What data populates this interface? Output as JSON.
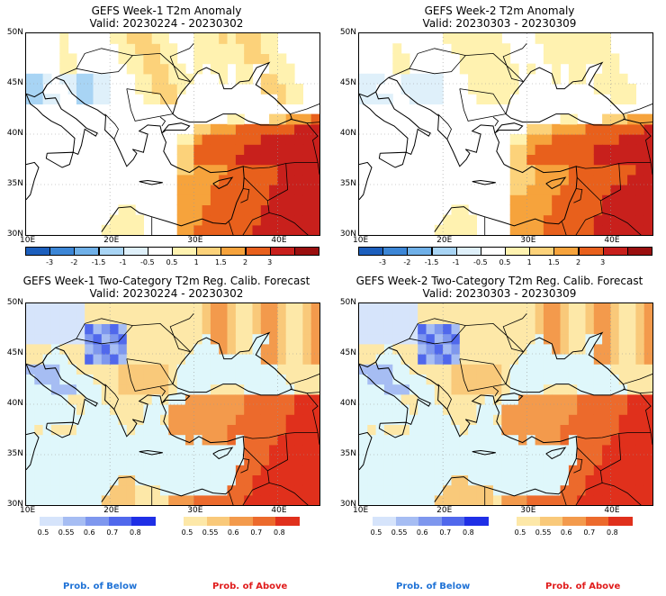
{
  "panels": [
    {
      "id": "tl",
      "title_line1": "GEFS Week-1 T2m Anomaly",
      "title_line2": "Valid: 20230224 - 20230302",
      "type": "anomaly"
    },
    {
      "id": "tr",
      "title_line1": "GEFS Week-2 T2m Anomaly",
      "title_line2": "Valid: 20230303 - 20230309",
      "type": "anomaly"
    },
    {
      "id": "bl",
      "title_line1": "GEFS Week-1 Two-Category T2m Reg. Calib. Forecast",
      "title_line2": "Valid: 20230224 - 20230302",
      "type": "prob"
    },
    {
      "id": "br",
      "title_line1": "GEFS Week-2 Two-Category T2m Reg. Calib. Forecast",
      "title_line2": "Valid: 20230303 - 20230309",
      "type": "prob"
    }
  ],
  "lat_labels": [
    "50N",
    "45N",
    "40N",
    "35N",
    "30N"
  ],
  "lon_labels": [
    "10E",
    "20E",
    "30E",
    "40E"
  ],
  "anomaly_colorbar": {
    "ticks": [
      "-3",
      "-2",
      "-1.5",
      "-1",
      "-0.5",
      "0.5",
      "1",
      "1.5",
      "2",
      "3"
    ],
    "colors": [
      "#1c5fbd",
      "#3c86d6",
      "#6fb0e8",
      "#a8d4f4",
      "#dff0fa",
      "#ffffff",
      "#fff2b0",
      "#fcd27a",
      "#f6a33c",
      "#e8601c",
      "#c8201c",
      "#9a0f0f"
    ]
  },
  "below_colorbar": {
    "ticks": [
      "0.5",
      "0.55",
      "0.6",
      "0.7",
      "0.8"
    ],
    "colors": [
      "#d6e4fb",
      "#a6bdf3",
      "#7e97ee",
      "#5068ec",
      "#1f2fe6"
    ]
  },
  "above_colorbar": {
    "ticks": [
      "0.5",
      "0.55",
      "0.6",
      "0.7",
      "0.8"
    ],
    "colors": [
      "#fde8a8",
      "#f9c97a",
      "#f39a4c",
      "#ec6a2c",
      "#e0301c"
    ]
  },
  "legend": {
    "below_label": "Prob. of Below",
    "above_label": "Prob. of Above",
    "below_color": "#1f72d6",
    "above_color": "#e01c1c"
  },
  "map_colors": {
    "sea_prob": "#dff7fb",
    "land_neutral": "#ffffff",
    "coast": "#000000"
  }
}
